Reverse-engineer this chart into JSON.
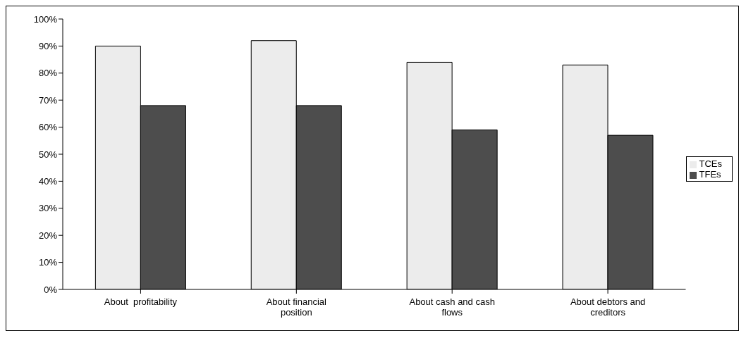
{
  "chart_data": {
    "type": "bar",
    "categories": [
      "About  profitability",
      "About financial position",
      "About cash and cash flows",
      "About debtors and creditors"
    ],
    "series": [
      {
        "name": "TCEs",
        "color": "#ececec",
        "values": [
          90,
          92,
          84,
          83
        ]
      },
      {
        "name": "TFEs",
        "color": "#4d4d4d",
        "values": [
          68,
          68,
          59,
          57
        ]
      }
    ],
    "ylim": [
      0,
      100
    ],
    "yticks": [
      {
        "value": 0,
        "label": "0%"
      },
      {
        "value": 10,
        "label": "10%"
      },
      {
        "value": 20,
        "label": "20%"
      },
      {
        "value": 30,
        "label": "30%"
      },
      {
        "value": 40,
        "label": "40%"
      },
      {
        "value": 50,
        "label": "50%"
      },
      {
        "value": 60,
        "label": "60%"
      },
      {
        "value": 70,
        "label": "70%"
      },
      {
        "value": 80,
        "label": "80%"
      },
      {
        "value": 90,
        "label": "90%"
      },
      {
        "value": 100,
        "label": "100%"
      }
    ],
    "grid": false,
    "legend": "right"
  }
}
